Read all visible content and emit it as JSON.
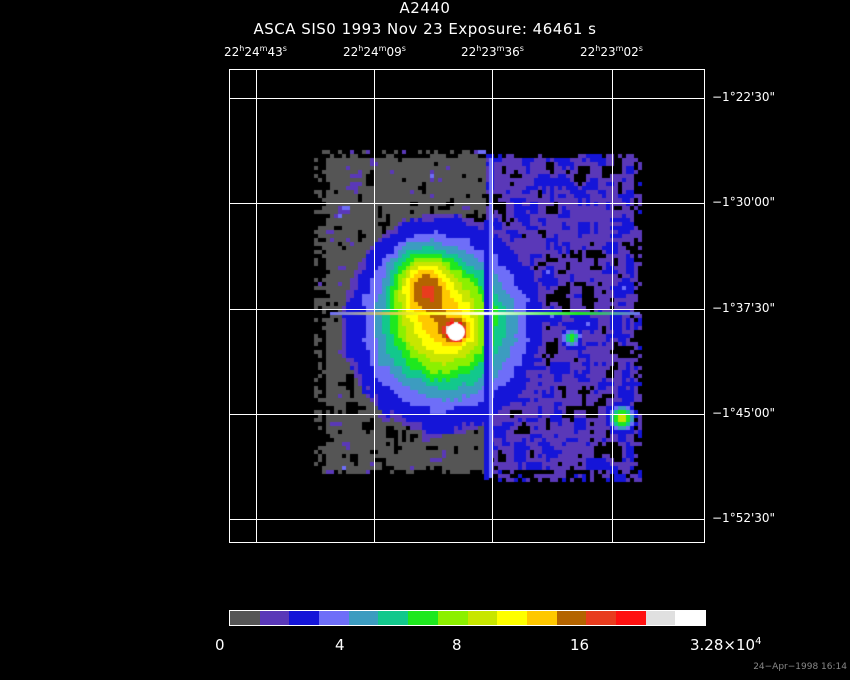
{
  "header": {
    "object": "A2440",
    "instrument_line": "ASCA SIS0    1993 Nov 23    Exposure: 46461 s"
  },
  "ra_axis": [
    {
      "h": "22",
      "m": "24",
      "s": "43"
    },
    {
      "h": "22",
      "m": "24",
      "s": "09"
    },
    {
      "h": "22",
      "m": "23",
      "s": "36"
    },
    {
      "h": "22",
      "m": "23",
      "s": "02"
    }
  ],
  "dec_axis": [
    "−1°22'30\"",
    "−1°30'00\"",
    "−1°37'30\"",
    "−1°45'00\"",
    "−1°52'30\""
  ],
  "colorbar": {
    "colors": [
      "#555555",
      "#5a38b8",
      "#1515d8",
      "#6e6ef8",
      "#3c9cc0",
      "#12c88c",
      "#1ee81e",
      "#8cf000",
      "#c8e600",
      "#ffff00",
      "#ffc800",
      "#b46400",
      "#e83c1e",
      "#ff1010",
      "#e0e0e0",
      "#ffffff"
    ],
    "labels": [
      "0",
      "4",
      "8",
      "16"
    ],
    "max_label": {
      "mantissa": "3.28×10",
      "exponent": "4"
    }
  },
  "timestamp": "24−Apr−1998 16:14"
}
